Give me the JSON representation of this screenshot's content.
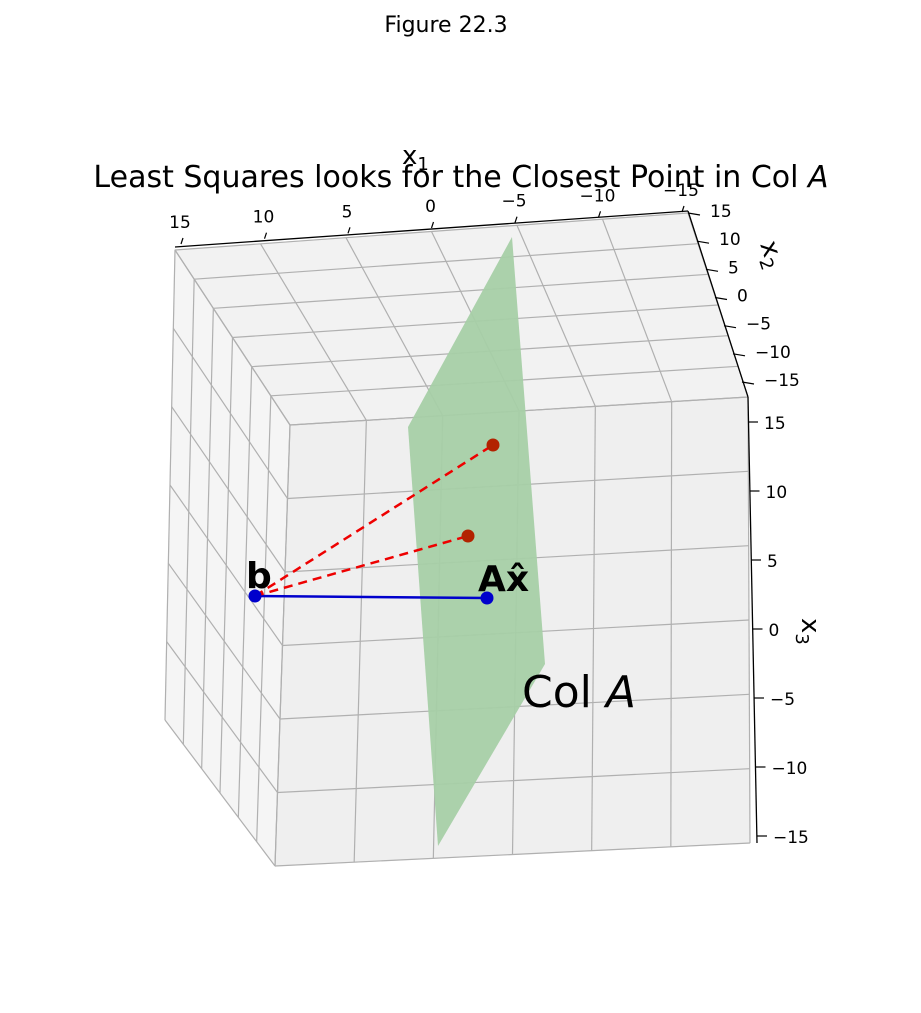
{
  "window_title": "Figure 22.3",
  "chart_data": {
    "type": "scatter",
    "projection": "3d",
    "title": "Least Squares looks for the Closest Point in Col ",
    "title_italic": "A",
    "axes": {
      "x1": {
        "label_main": "x",
        "label_sub": "1",
        "lim": [
          -15,
          15
        ],
        "ticks": [
          "15",
          "10",
          "5",
          "0",
          "−5",
          "−10",
          "−15"
        ]
      },
      "x2": {
        "label_main": "x",
        "label_sub": "2",
        "lim": [
          -15,
          15
        ],
        "ticks": [
          "15",
          "10",
          "5",
          "0",
          "−5",
          "−10",
          "−15"
        ]
      },
      "x3": {
        "label_main": "x",
        "label_sub": "3",
        "lim": [
          -15,
          15
        ],
        "ticks": [
          "15",
          "10",
          "5",
          "0",
          "−5",
          "−10",
          "−15"
        ]
      }
    },
    "grid": true,
    "plane": {
      "name_main": "Col ",
      "name_italic": "A",
      "color": "#a6cfa6"
    },
    "points": [
      {
        "label": "b",
        "color": "#0000cc",
        "x": [
          9.5,
          0,
          2.3
        ]
      },
      {
        "label": "Ax̂",
        "color": "#0000cc",
        "x": [
          -4.2,
          0,
          2.2
        ]
      },
      {
        "label": "",
        "color": "#b22200",
        "x": [
          -3.8,
          0,
          13.0
        ]
      },
      {
        "label": "",
        "color": "#b22200",
        "x": [
          -2.5,
          0,
          6.5
        ]
      }
    ],
    "segments": [
      {
        "from": "b",
        "to": "Ax̂",
        "style": "solid",
        "color": "#0000cc"
      },
      {
        "from": "b",
        "to": "p1",
        "style": "dashed",
        "color": "#ee0000"
      },
      {
        "from": "b",
        "to": "p2",
        "style": "dashed",
        "color": "#ee0000"
      }
    ]
  }
}
